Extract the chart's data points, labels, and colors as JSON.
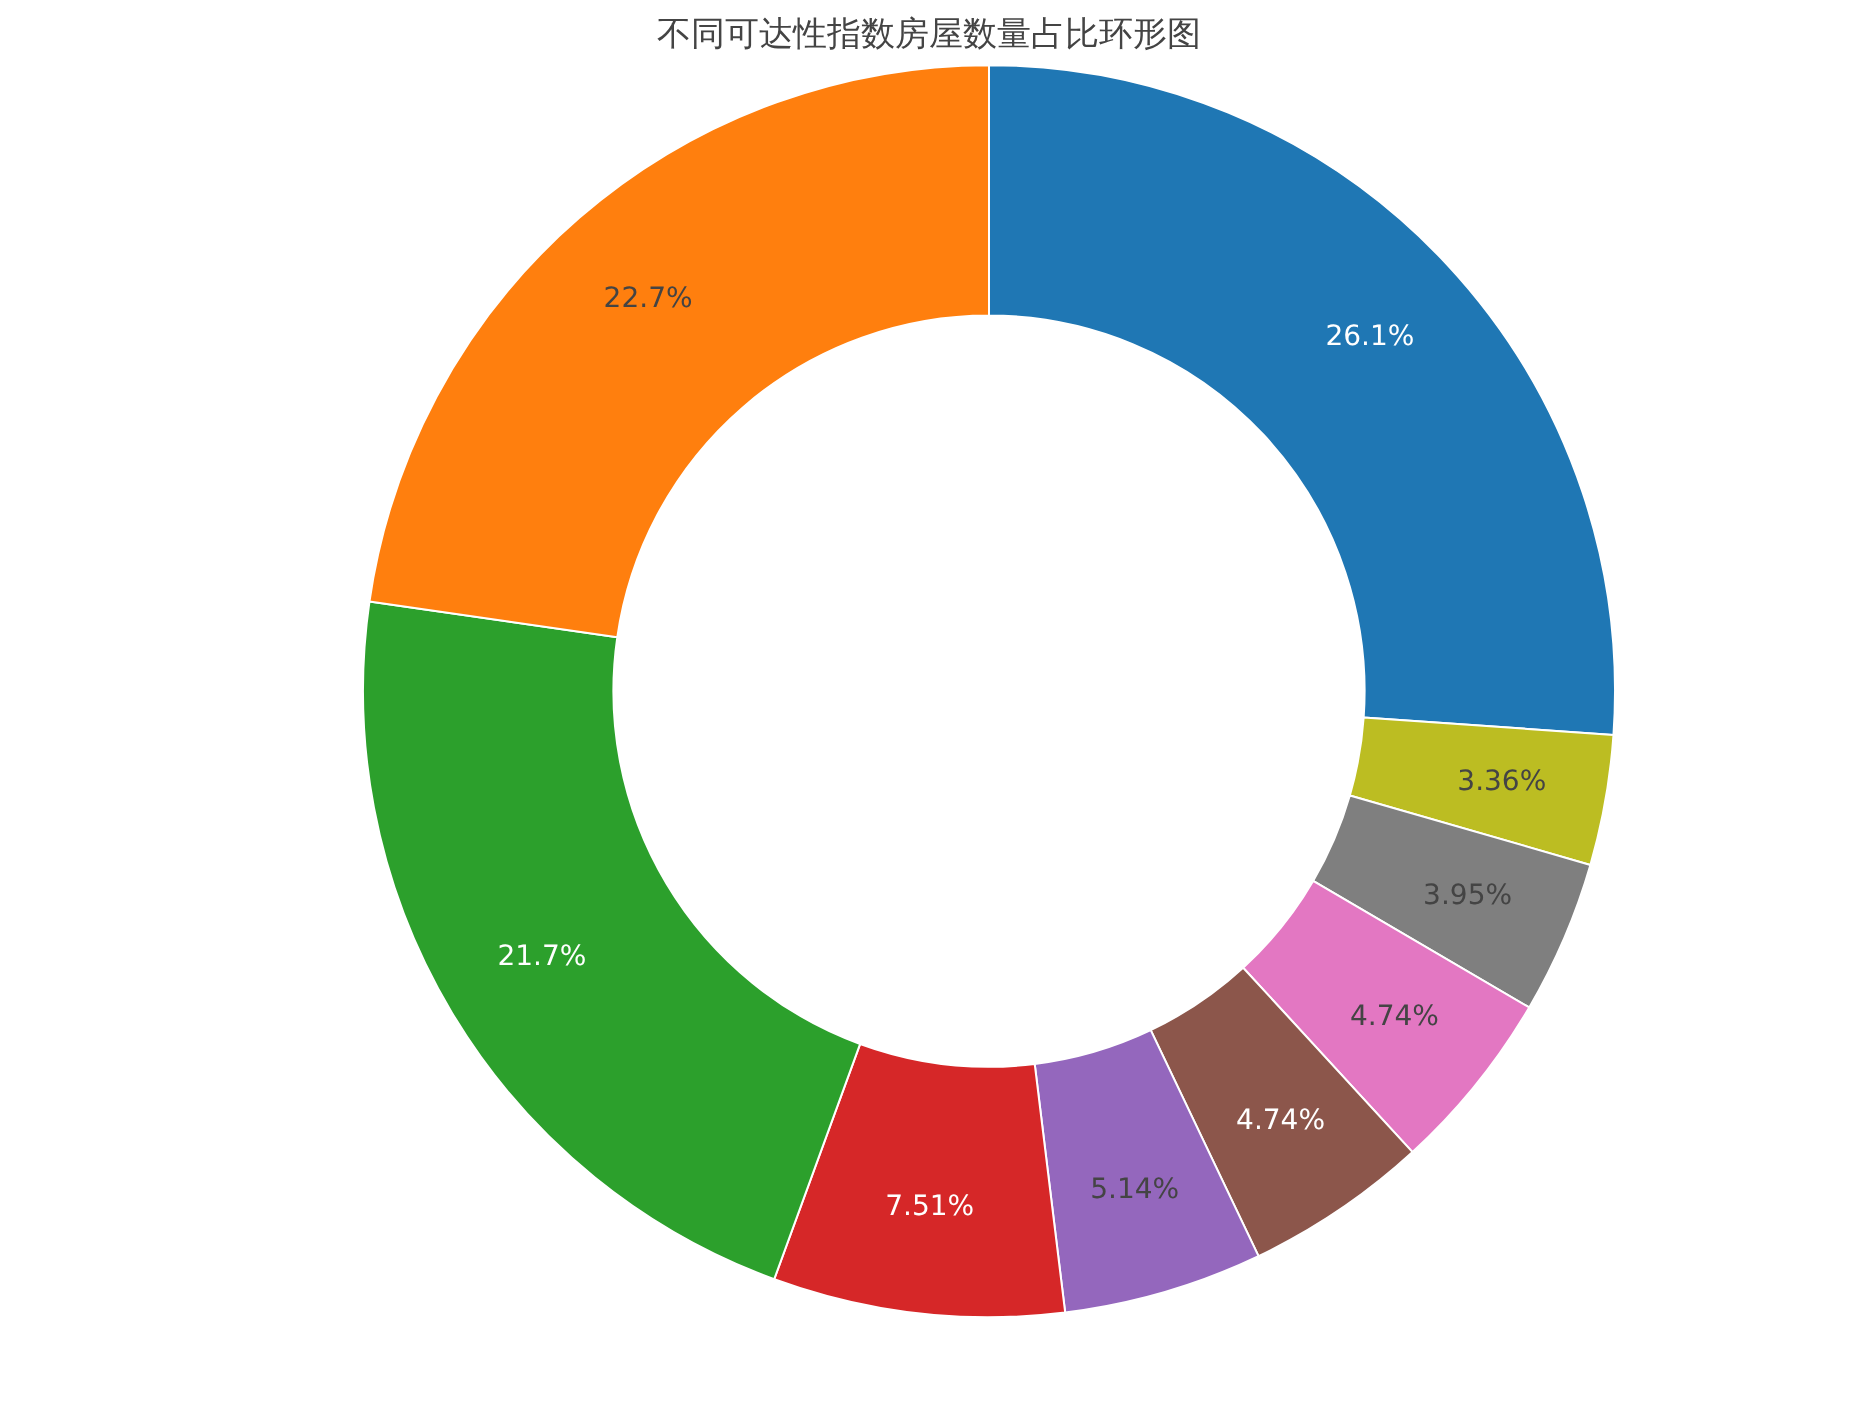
{
  "chart_data": {
    "type": "donut",
    "title": "不同可达性指数房屋数量占比环形图",
    "categories": [
      null,
      null,
      null,
      null,
      null,
      null,
      null,
      null,
      null
    ],
    "values": [
      26.1,
      3.36,
      3.95,
      4.74,
      4.74,
      5.14,
      7.51,
      21.7,
      22.7
    ],
    "colors": [
      "#1f77b4",
      "#bcbd22",
      "#7f7f7f",
      "#e377c2",
      "#8c564b",
      "#9467bd",
      "#d62728",
      "#2ca02c",
      "#ff7f0e"
    ],
    "value_labels": [
      "26.1%",
      "3.36%",
      "3.95%",
      "4.74%",
      "4.74%",
      "5.14%",
      "7.51%",
      "21.7%",
      "22.7%"
    ]
  }
}
